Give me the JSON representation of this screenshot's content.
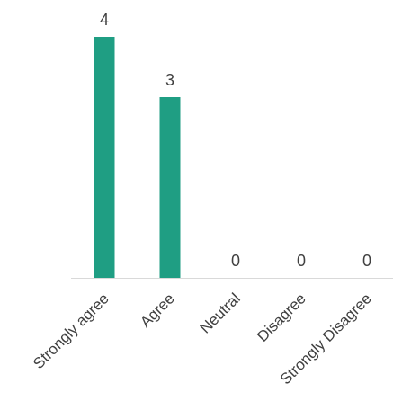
{
  "chart_data": {
    "type": "bar",
    "categories": [
      "Strongly agree",
      "Agree",
      "Neutral",
      "Disagree",
      "Strongly Disagree"
    ],
    "values": [
      4,
      3,
      0,
      0,
      0
    ],
    "data_labels": [
      "4",
      "3",
      "0",
      "0",
      "0"
    ],
    "title": "",
    "xlabel": "",
    "ylabel": "",
    "ylim": [
      0,
      4
    ],
    "grid": false,
    "legend": "none",
    "bar_color": "#1f9e83",
    "axis_color": "#d9d9d9",
    "label_color": "#404040"
  }
}
